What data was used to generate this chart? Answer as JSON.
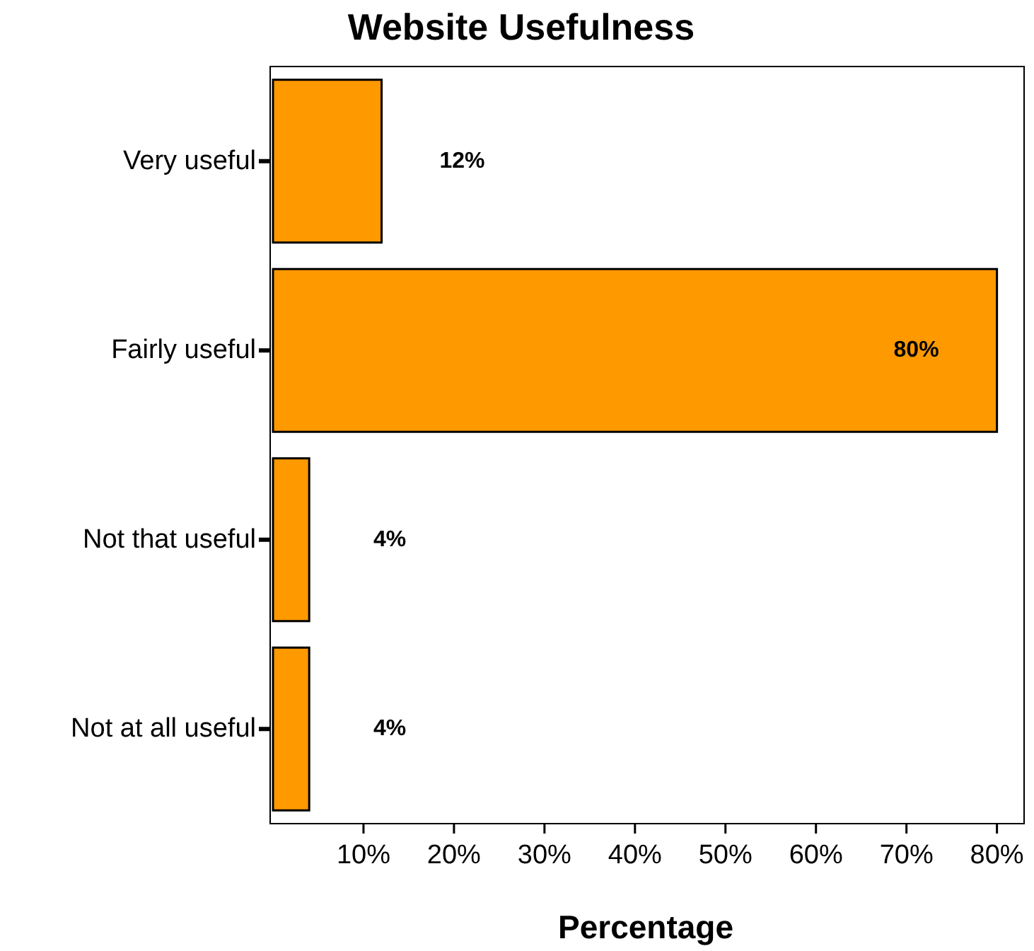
{
  "chart_data": {
    "type": "bar",
    "title": "Website Usefulness",
    "xlabel": "Percentage",
    "orientation": "horizontal",
    "categories": [
      "Very useful",
      "Fairly useful",
      "Not that useful",
      "Not at all useful"
    ],
    "values": [
      12,
      80,
      4,
      4
    ],
    "color": "#ff9900",
    "value_labels": [
      "12%",
      "80%",
      "4%",
      "4%"
    ],
    "xlim": [
      0,
      83
    ],
    "xticks": [
      {
        "value": 10,
        "label": "10%"
      },
      {
        "value": 20,
        "label": "20%"
      },
      {
        "value": 30,
        "label": "30%"
      },
      {
        "value": 40,
        "label": "40%"
      },
      {
        "value": 50,
        "label": "50%"
      },
      {
        "value": 60,
        "label": "60%"
      },
      {
        "value": 70,
        "label": "70%"
      },
      {
        "value": 80,
        "label": "80%"
      }
    ],
    "grid": false
  }
}
